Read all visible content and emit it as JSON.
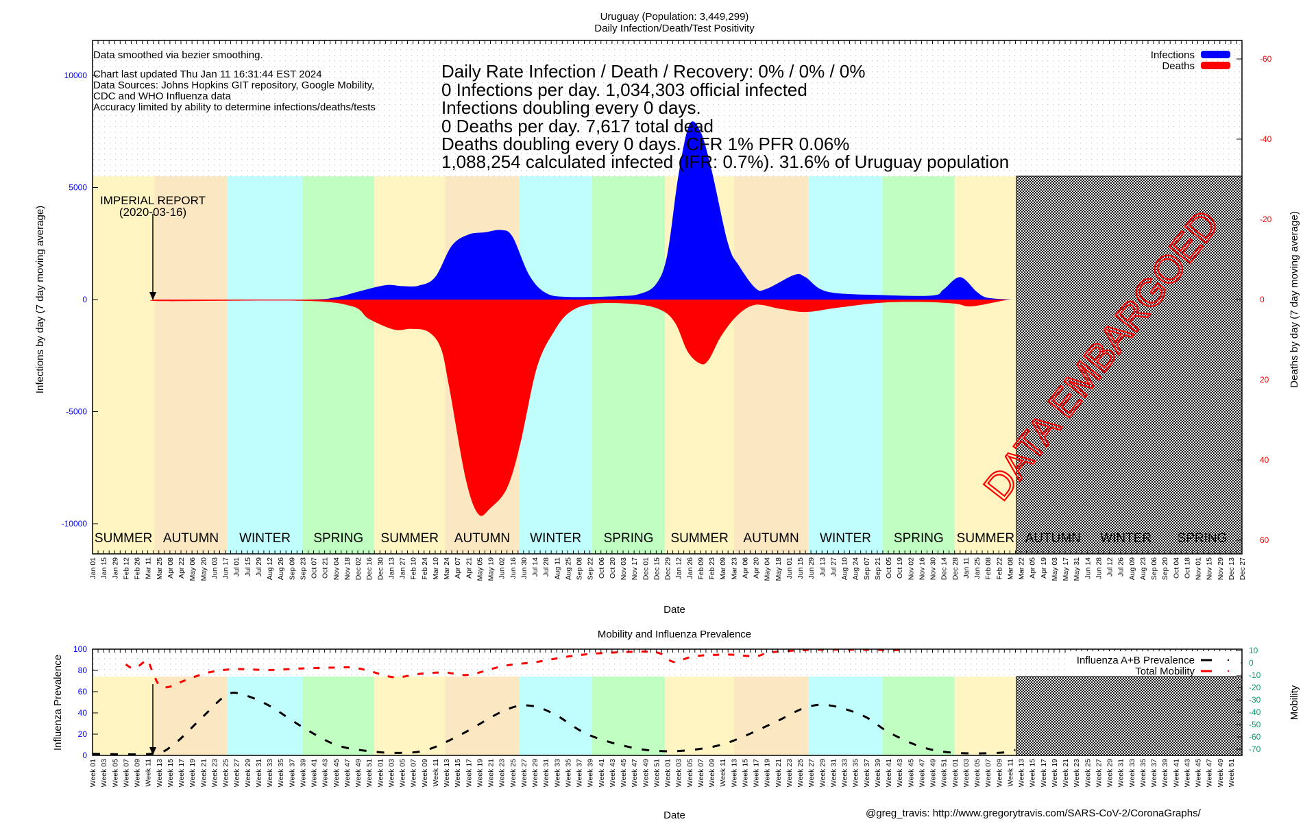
{
  "header": {
    "title": "Uruguay (Population: 3,449,299)",
    "subtitle": "Daily Infection/Death/Test Positivity"
  },
  "notes": {
    "smoothing": "Data smoothed via bezier smoothing.",
    "updated": "Chart last updated Thu Jan 11 16:31:44 EST 2024",
    "sources_1": "Data Sources: Johns Hopkins GIT repository, Google Mobility,",
    "sources_2": "CDC and WHO Influenza data",
    "accuracy": "Accuracy limited by ability to determine infections/deaths/tests"
  },
  "stats": [
    "Daily Rate Infection / Death / Recovery: 0% / 0% / 0%",
    "0 Infections per day.  1,034,303 official infected",
    "Infections doubling every 0 days.",
    "0 Deaths per day.  7,617 total dead",
    "Deaths doubling every 0 days.  CFR 1%  PFR 0.06%",
    "1,088,254 calculated infected (IFR: 0.7%).  31.6% of Uruguay population"
  ],
  "annotation": {
    "line1": "IMPERIAL REPORT",
    "line2": "(2020-03-16)",
    "week": 11
  },
  "embargo": {
    "label": "DATA EMBARGOED",
    "start_week": 167.2,
    "color": "#ff0000"
  },
  "seasons": [
    {
      "name": "SUMMER",
      "start": 0,
      "end": 11.2,
      "color": "#fff5c3"
    },
    {
      "name": "AUTUMN",
      "start": 11.2,
      "end": 24.4,
      "color": "#fce7c3"
    },
    {
      "name": "WINTER",
      "start": 24.4,
      "end": 38,
      "color": "#c0fefe"
    },
    {
      "name": "SPRING",
      "start": 38,
      "end": 51,
      "color": "#c1fec1"
    },
    {
      "name": "SUMMER",
      "start": 51,
      "end": 63.8,
      "color": "#fff5c3"
    },
    {
      "name": "AUTUMN",
      "start": 63.8,
      "end": 77.2,
      "color": "#fce7c3"
    },
    {
      "name": "WINTER",
      "start": 77.2,
      "end": 90.4,
      "color": "#c0fefe"
    },
    {
      "name": "SPRING",
      "start": 90.4,
      "end": 103.6,
      "color": "#c1fec1"
    },
    {
      "name": "SUMMER",
      "start": 103.6,
      "end": 116.1,
      "color": "#fff5c3"
    },
    {
      "name": "AUTUMN",
      "start": 116.1,
      "end": 129.5,
      "color": "#fce7c3"
    },
    {
      "name": "WINTER",
      "start": 129.5,
      "end": 143,
      "color": "#c0fefe"
    },
    {
      "name": "SPRING",
      "start": 143,
      "end": 156,
      "color": "#c1fec1"
    },
    {
      "name": "SUMMER",
      "start": 156,
      "end": 167.2,
      "color": "#fff5c3"
    },
    {
      "name": "AUTUMN",
      "start": 167.2,
      "end": 180.4,
      "color": null
    },
    {
      "name": "WINTER",
      "start": 180.4,
      "end": 193.6,
      "color": null
    },
    {
      "name": "SPRING",
      "start": 193.6,
      "end": 208,
      "color": null
    }
  ],
  "footer": "@greg_travis: http://www.gregorytravis.com/SARS-CoV-2/CoronaGraphs/",
  "chart_data": [
    {
      "type": "area",
      "title": "Daily Infection/Death/Test Positivity",
      "xlabel": "Date",
      "ylabel": "Infections by day (7 day moving average)",
      "y2label": "Deaths by day (7 day moving average)",
      "x_unit": "weeks since 2020-01-01",
      "xlim": [
        0,
        208
      ],
      "ylim": [
        -10000,
        10000
      ],
      "y2lim": [
        60,
        -60
      ],
      "yticks": [
        "10000",
        "5000",
        "0",
        "-5000",
        "-10000"
      ],
      "y2ticks": [
        "-60",
        "-40",
        "-20",
        "0",
        "20",
        "40",
        "60"
      ],
      "legend": {
        "position": "top-right",
        "entries": [
          {
            "name": "Infections",
            "color": "#0000ff"
          },
          {
            "name": "Deaths",
            "color": "#ff0000"
          }
        ]
      },
      "xticklabels": [
        "Jan 01",
        "Jan 15",
        "Jan 29",
        "Feb 12",
        "Feb 26",
        "Mar 11",
        "Mar 25",
        "Apr 08",
        "Apr 22",
        "May 06",
        "May 20",
        "Jun 03",
        "Jun 17",
        "Jul 01",
        "Jul 15",
        "Jul 29",
        "Aug 12",
        "Aug 26",
        "Sep 09",
        "Sep 23",
        "Oct 07",
        "Oct 21",
        "Nov 04",
        "Nov 18",
        "Dec 02",
        "Dec 16",
        "Dec 30",
        "Jan 13",
        "Jan 27",
        "Feb 10",
        "Feb 24",
        "Mar 10",
        "Mar 24",
        "Apr 07",
        "Apr 21",
        "May 05",
        "May 19",
        "Jun 02",
        "Jun 16",
        "Jun 30",
        "Jul 14",
        "Jul 28",
        "Aug 11",
        "Aug 25",
        "Sep 08",
        "Sep 22",
        "Oct 06",
        "Oct 20",
        "Nov 03",
        "Nov 17",
        "Dec 01",
        "Dec 15",
        "Dec 29",
        "Jan 12",
        "Jan 26",
        "Feb 09",
        "Feb 23",
        "Mar 09",
        "Mar 23",
        "Apr 06",
        "Apr 20",
        "May 04",
        "May 18",
        "Jun 01",
        "Jun 15",
        "Jun 29",
        "Jul 13",
        "Jul 27",
        "Aug 10",
        "Aug 24",
        "Sep 07",
        "Sep 21",
        "Oct 05",
        "Oct 19",
        "Nov 02",
        "Nov 16",
        "Nov 30",
        "Dec 14",
        "Dec 28",
        "Jan 11",
        "Jan 25",
        "Feb 08",
        "Feb 22",
        "Mar 08",
        "Mar 22",
        "Apr 05",
        "Apr 19",
        "May 03",
        "May 17",
        "May 31",
        "Jun 14",
        "Jun 28",
        "Jul 12",
        "Jul 26",
        "Aug 09",
        "Aug 23",
        "Sep 06",
        "Sep 20",
        "Oct 04",
        "Oct 18",
        "Nov 01",
        "Nov 15",
        "Nov 29",
        "Dec 13",
        "Dec 27"
      ],
      "series": [
        {
          "name": "Infections",
          "axis": "left",
          "color": "#0000ff",
          "points": [
            [
              11,
              0
            ],
            [
              38,
              0
            ],
            [
              44,
              100
            ],
            [
              48,
              350
            ],
            [
              53,
              640
            ],
            [
              56,
              600
            ],
            [
              59,
              620
            ],
            [
              62,
              1000
            ],
            [
              65,
              2400
            ],
            [
              68,
              2900
            ],
            [
              71,
              3000
            ],
            [
              74,
              3100
            ],
            [
              76,
              2800
            ],
            [
              79,
              1100
            ],
            [
              82,
              300
            ],
            [
              86,
              120
            ],
            [
              95,
              150
            ],
            [
              99,
              250
            ],
            [
              102,
              700
            ],
            [
              104,
              2000
            ],
            [
              106,
              5500
            ],
            [
              108,
              7800
            ],
            [
              110,
              7500
            ],
            [
              112,
              5800
            ],
            [
              115,
              2500
            ],
            [
              117,
              1500
            ],
            [
              120,
              500
            ],
            [
              122,
              480
            ],
            [
              127,
              1100
            ],
            [
              129,
              1000
            ],
            [
              133,
              350
            ],
            [
              143,
              200
            ],
            [
              152,
              180
            ],
            [
              154,
              450
            ],
            [
              157,
              1000
            ],
            [
              160,
              350
            ],
            [
              162,
              80
            ],
            [
              166.5,
              0
            ]
          ]
        },
        {
          "name": "Deaths",
          "axis": "right",
          "color": "#ff0000",
          "points": [
            [
              11,
              0
            ],
            [
              13,
              0.4
            ],
            [
              38,
              0.3
            ],
            [
              47,
              1.7
            ],
            [
              50,
              4.8
            ],
            [
              54.6,
              7.5
            ],
            [
              57.7,
              7.3
            ],
            [
              60.7,
              8
            ],
            [
              63,
              12
            ],
            [
              64.5,
              21.5
            ],
            [
              67.5,
              44.5
            ],
            [
              69.8,
              53.5
            ],
            [
              72,
              52
            ],
            [
              75,
              47
            ],
            [
              77.4,
              36
            ],
            [
              80.4,
              17
            ],
            [
              83.5,
              8
            ],
            [
              86.5,
              3
            ],
            [
              91,
              1
            ],
            [
              98.6,
              1.2
            ],
            [
              103,
              2.7
            ],
            [
              105.5,
              6
            ],
            [
              107.7,
              13
            ],
            [
              110,
              16
            ],
            [
              111.5,
              15
            ],
            [
              113.8,
              9
            ],
            [
              116.8,
              3.8
            ],
            [
              120,
              1.3
            ],
            [
              124.4,
              2.3
            ],
            [
              129,
              3.1
            ],
            [
              135,
              2
            ],
            [
              142.6,
              0.8
            ],
            [
              150,
              0.6
            ],
            [
              156,
              1
            ],
            [
              159,
              1.7
            ],
            [
              165,
              0.2
            ],
            [
              166.5,
              0
            ]
          ]
        }
      ]
    },
    {
      "type": "line",
      "title": "Mobility and Influenza Prevalence",
      "xlabel": "Date",
      "ylabel": "Influenza Prevalence",
      "y2label": "Mobility",
      "x_unit": "weeks since 2020-01-01",
      "xlim": [
        0,
        208
      ],
      "ylim": [
        0,
        100
      ],
      "y2lim": [
        -70,
        10
      ],
      "yticks": [
        "0",
        "20",
        "40",
        "60",
        "80",
        "100"
      ],
      "y2ticks": [
        "10",
        "0",
        "-10",
        "-20",
        "-30",
        "-40",
        "-50",
        "-60",
        "-70"
      ],
      "y2color": "#00a070",
      "legend": {
        "position": "top-right",
        "entries": [
          {
            "name": "Influenza A+B Prevalence",
            "color": "#000000"
          },
          {
            "name": "Total Mobility",
            "color": "#ff0000"
          }
        ]
      },
      "xticklabels": [
        "Week 01",
        "Week 03",
        "Week 05",
        "Week 07",
        "Week 09",
        "Week 11",
        "Week 13",
        "Week 15",
        "Week 17",
        "Week 19",
        "Week 21",
        "Week 23",
        "Week 25",
        "Week 27",
        "Week 29",
        "Week 31",
        "Week 33",
        "Week 35",
        "Week 37",
        "Week 39",
        "Week 41",
        "Week 43",
        "Week 45",
        "Week 47",
        "Week 49",
        "Week 51",
        "Week 01",
        "Week 03",
        "Week 05",
        "Week 07",
        "Week 09",
        "Week 11",
        "Week 13",
        "Week 15",
        "Week 17",
        "Week 19",
        "Week 21",
        "Week 23",
        "Week 25",
        "Week 27",
        "Week 29",
        "Week 31",
        "Week 33",
        "Week 35",
        "Week 37",
        "Week 39",
        "Week 41",
        "Week 43",
        "Week 45",
        "Week 47",
        "Week 49",
        "Week 51",
        "Week 01",
        "Week 03",
        "Week 05",
        "Week 07",
        "Week 09",
        "Week 11",
        "Week 13",
        "Week 15",
        "Week 17",
        "Week 19",
        "Week 21",
        "Week 23",
        "Week 25",
        "Week 27",
        "Week 29",
        "Week 31",
        "Week 33",
        "Week 35",
        "Week 37",
        "Week 39",
        "Week 41",
        "Week 43",
        "Week 45",
        "Week 47",
        "Week 49",
        "Week 51",
        "Week 01",
        "Week 03",
        "Week 05",
        "Week 07",
        "Week 09",
        "Week 11",
        "Week 13",
        "Week 15",
        "Week 17",
        "Week 19",
        "Week 21",
        "Week 23",
        "Week 25",
        "Week 27",
        "Week 29",
        "Week 31",
        "Week 33",
        "Week 35",
        "Week 37",
        "Week 39",
        "Week 41",
        "Week 43",
        "Week 45",
        "Week 47",
        "Week 49",
        "Week 51"
      ],
      "series": [
        {
          "name": "Influenza A+B Prevalence",
          "axis": "left",
          "color": "#000000",
          "points": [
            [
              0,
              1.5
            ],
            [
              10.6,
              1.5
            ],
            [
              14.4,
              9
            ],
            [
              19.7,
              35
            ],
            [
              24.3,
              57
            ],
            [
              27.3,
              57
            ],
            [
              31.9,
              47
            ],
            [
              37.9,
              27
            ],
            [
              44,
              10
            ],
            [
              50,
              4
            ],
            [
              56,
              2.4
            ],
            [
              60.7,
              5.5
            ],
            [
              66.8,
              20
            ],
            [
              74.4,
              42
            ],
            [
              78.9,
              47
            ],
            [
              83.5,
              39
            ],
            [
              89.5,
              20
            ],
            [
              97,
              8
            ],
            [
              103,
              4
            ],
            [
              109,
              5.5
            ],
            [
              115,
              12
            ],
            [
              123,
              30
            ],
            [
              129,
              45
            ],
            [
              133.5,
              47
            ],
            [
              139.6,
              37
            ],
            [
              144,
              22
            ],
            [
              150,
              8
            ],
            [
              156,
              2.4
            ],
            [
              164,
              2.4
            ],
            [
              167,
              5
            ]
          ]
        },
        {
          "name": "Total Mobility",
          "axis": "right",
          "color": "#ff0000",
          "points": [
            [
              6,
              -1.2
            ],
            [
              7.6,
              -4.5
            ],
            [
              9.9,
              2.1
            ],
            [
              10.6,
              -4.5
            ],
            [
              12,
              -17.6
            ],
            [
              13.7,
              -19.6
            ],
            [
              16.7,
              -14.3
            ],
            [
              21,
              -7.8
            ],
            [
              25.8,
              -5.1
            ],
            [
              32,
              -5.8
            ],
            [
              38,
              -4.5
            ],
            [
              44,
              -3.8
            ],
            [
              47,
              -3.8
            ],
            [
              50,
              -6.4
            ],
            [
              54.6,
              -11.7
            ],
            [
              59,
              -9
            ],
            [
              63.7,
              -7.8
            ],
            [
              68,
              -9.7
            ],
            [
              74.4,
              -2.5
            ],
            [
              80.4,
              0.8
            ],
            [
              86.5,
              5.4
            ],
            [
              92.6,
              8
            ],
            [
              101.7,
              8.7
            ],
            [
              104.7,
              1.4
            ],
            [
              106,
              1.4
            ],
            [
              109,
              5.4
            ],
            [
              115,
              6.7
            ],
            [
              120,
              5.4
            ],
            [
              123,
              8.7
            ],
            [
              132,
              10.7
            ],
            [
              147,
              10.2
            ]
          ]
        }
      ]
    }
  ]
}
